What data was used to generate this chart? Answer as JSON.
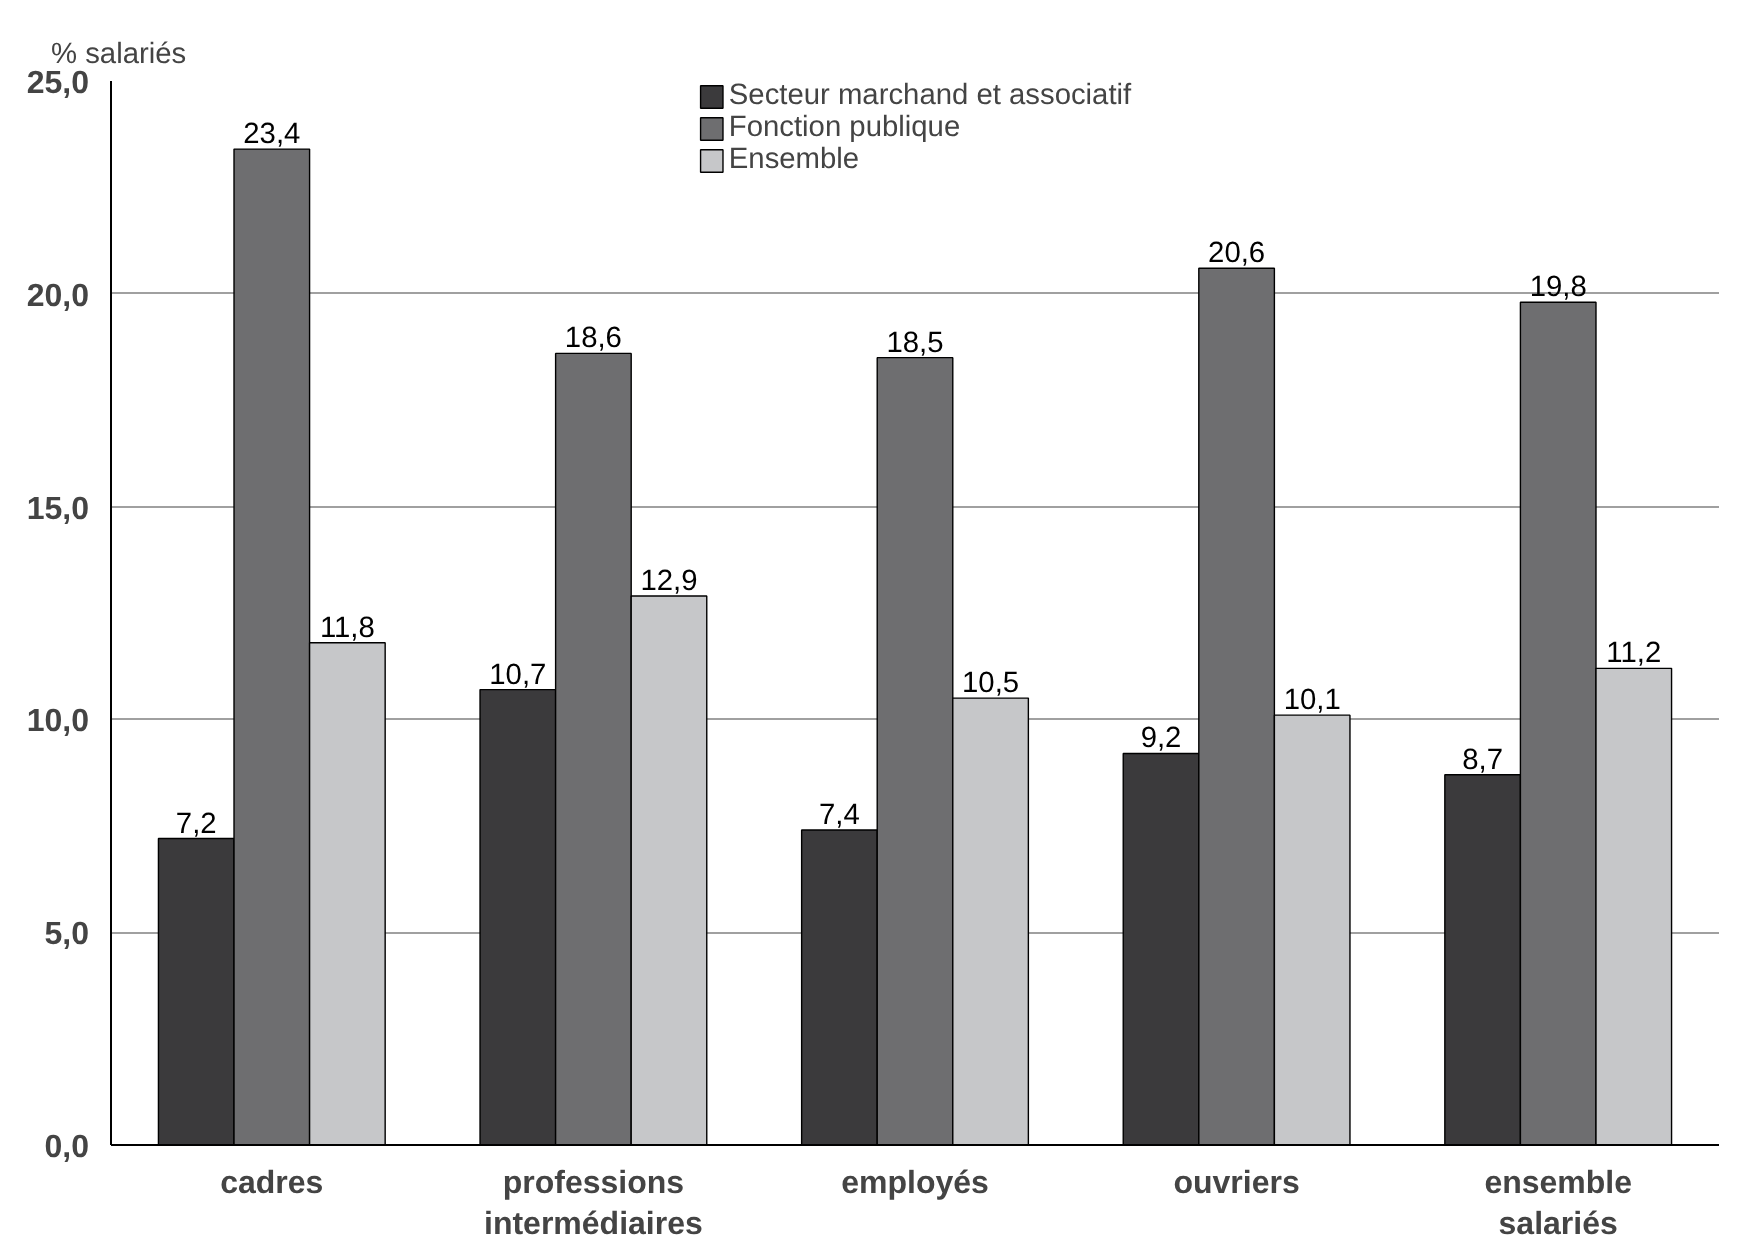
{
  "chart_data": {
    "type": "bar",
    "ylabel": "% salariés",
    "categories": [
      "cadres",
      "professions intermédiaires",
      "employés",
      "ouvriers",
      "ensemble salariés"
    ],
    "series": [
      {
        "name": "Secteur marchand et associatif",
        "color": "#3b3a3c",
        "values": [
          7.2,
          10.7,
          7.4,
          9.2,
          8.7
        ],
        "value_labels": [
          "7,2",
          "10,7",
          "7,4",
          "9,2",
          "8,7"
        ]
      },
      {
        "name": "Fonction publique",
        "color": "#6e6e70",
        "values": [
          23.4,
          18.6,
          18.5,
          20.6,
          19.8
        ],
        "value_labels": [
          "23,4",
          "18,6",
          "18,5",
          "20,6",
          "19,8"
        ]
      },
      {
        "name": "Ensemble",
        "color": "#c6c7c9",
        "values": [
          11.8,
          12.9,
          10.5,
          10.1,
          11.2
        ],
        "value_labels": [
          "11,8",
          "12,9",
          "10,5",
          "10,1",
          "11,2"
        ]
      }
    ],
    "ylim": [
      0,
      25
    ],
    "yticks": [
      {
        "value": 0,
        "label": "0,0"
      },
      {
        "value": 5,
        "label": "5,0"
      },
      {
        "value": 10,
        "label": "10,0"
      },
      {
        "value": 15,
        "label": "15,0"
      },
      {
        "value": 20,
        "label": "20,0"
      },
      {
        "value": 25,
        "label": "25,0"
      }
    ],
    "grid": "y",
    "legend": "top"
  }
}
